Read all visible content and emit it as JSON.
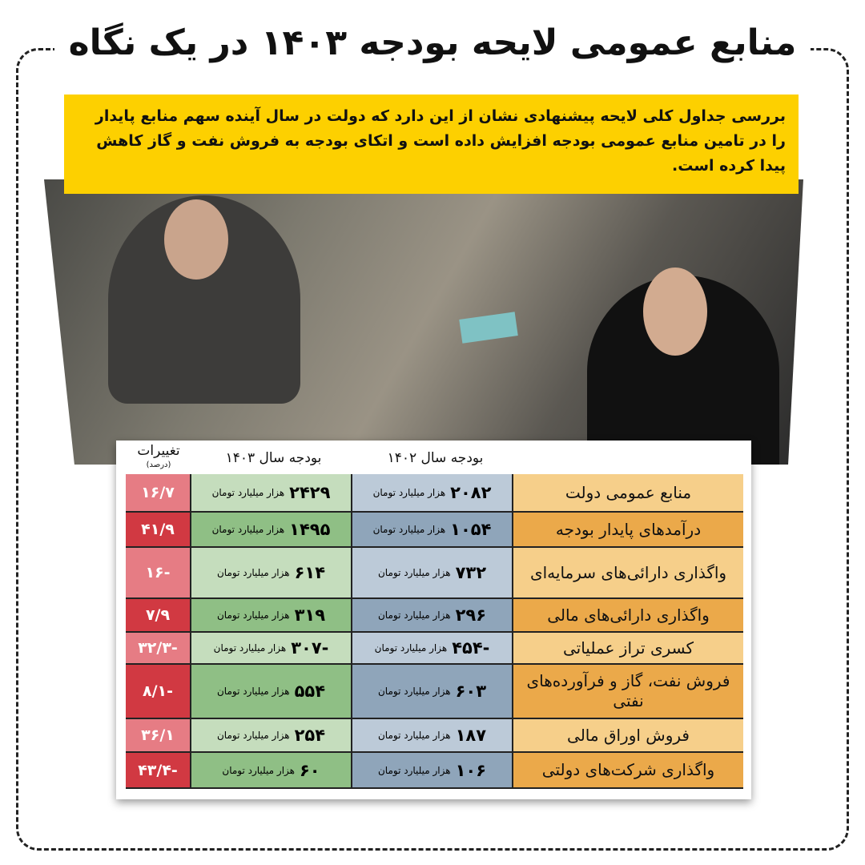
{
  "title": "منابع عمومی لایحه بودجه ۱۴۰۳ در یک نگاه",
  "intro": "بررسی جداول کلی لایحه پیشنهادی نشان از این دارد که دولت در سال آینده سهم منابع پایدار را در تامین منابع عمومی بودجه افزایش داده است و اتکای بودجه به فروش نفت و گاز کاهش پیدا کرده است.",
  "colors": {
    "yellow": "#fdd000",
    "label_light": "#f6cf8a",
    "label_dark": "#eba94a",
    "blue_light": "#bccad8",
    "blue_dark": "#8fa5ba",
    "green_light": "#c5ddbd",
    "green_dark": "#8fbf85",
    "red_light": "#e67c84",
    "red_dark": "#d13942"
  },
  "chart_data": {
    "type": "table",
    "headers": {
      "y1402": "بودجه سال ۱۴۰۲",
      "y1403": "بودجه سال ۱۴۰۳",
      "change": "تغییرات",
      "change_unit": "(درصد)"
    },
    "unit": "هزار میلیارد تومان",
    "rows": [
      {
        "label": "منابع عمومی دولت",
        "y1402": "۲۰۸۲",
        "y1403": "۲۴۲۹",
        "change": "۱۶/۷"
      },
      {
        "label": "درآمدهای پایدار بودجه",
        "y1402": "۱۰۵۴",
        "y1403": "۱۴۹۵",
        "change": "۴۱/۹"
      },
      {
        "label": "واگذاری دارائی‌های سرمایه‌ای",
        "y1402": "۷۳۲",
        "y1403": "۶۱۴",
        "change": "-۱۶"
      },
      {
        "label": "واگذاری دارائی‌های مالی",
        "y1402": "۲۹۶",
        "y1403": "۳۱۹",
        "change": "۷/۹"
      },
      {
        "label": "کسری تراز عملیاتی",
        "y1402": "-۴۵۴",
        "y1403": "-۳۰۷",
        "change": "-۳۲/۳"
      },
      {
        "label": "فروش نفت، گاز و فرآورده‌های نفتی",
        "y1402": "۶۰۳",
        "y1403": "۵۵۴",
        "change": "-۸/۱"
      },
      {
        "label": "فروش اوراق مالی",
        "y1402": "۱۸۷",
        "y1403": "۲۵۴",
        "change": "۳۶/۱"
      },
      {
        "label": "واگذاری شرکت‌های دولتی",
        "y1402": "۱۰۶",
        "y1403": "۶۰",
        "change": "-۴۳/۴"
      }
    ]
  }
}
